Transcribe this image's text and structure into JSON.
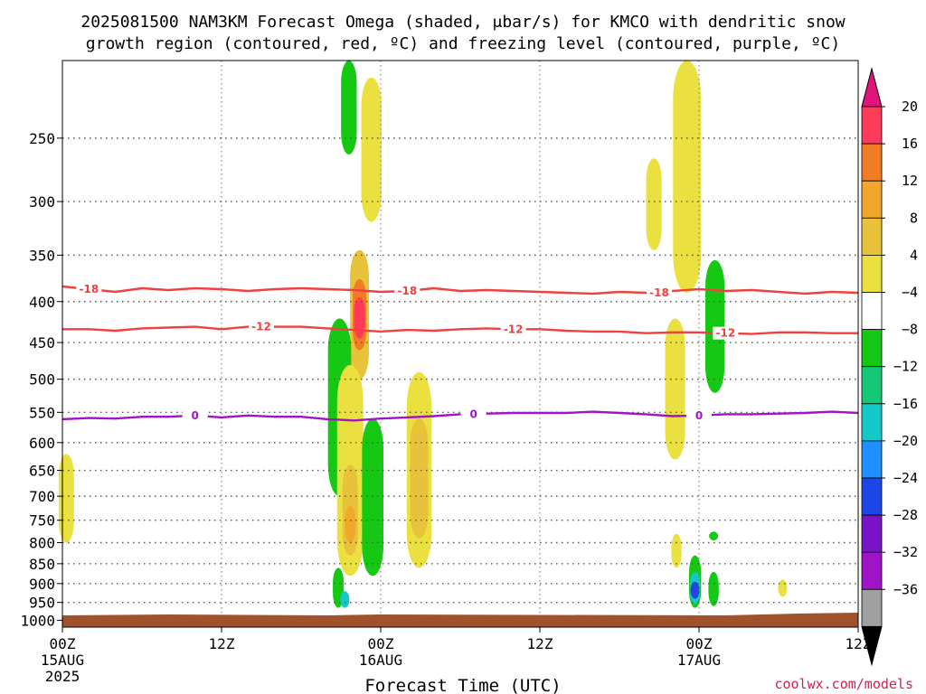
{
  "chart_data": {
    "type": "heatmap",
    "title_line1": "2025081500 NAM3KM Forecast Omega (shaded, μbar/s) for KMCO with dendritic snow",
    "title_line2": "growth region (contoured, red, ºC) and freezing level (contoured, purple, ºC)",
    "xlabel": "Forecast Time (UTC)",
    "x_ticks": [
      {
        "hours": 0,
        "label": "00Z",
        "sub1": "15AUG",
        "sub2": "2025"
      },
      {
        "hours": 12,
        "label": "12Z",
        "sub1": "",
        "sub2": ""
      },
      {
        "hours": 24,
        "label": "00Z",
        "sub1": "16AUG",
        "sub2": ""
      },
      {
        "hours": 36,
        "label": "12Z",
        "sub1": "",
        "sub2": ""
      },
      {
        "hours": 48,
        "label": "00Z",
        "sub1": "17AUG",
        "sub2": ""
      },
      {
        "hours": 60,
        "label": "12Z",
        "sub1": "",
        "sub2": ""
      }
    ],
    "xlim_hours": [
      0,
      60
    ],
    "y_pressure_ticks": [
      250,
      300,
      350,
      400,
      450,
      500,
      550,
      600,
      650,
      700,
      750,
      800,
      850,
      900,
      950,
      1000
    ],
    "ylim_hpa": [
      200,
      1020
    ],
    "y_scale": "log-pressure",
    "grid": true,
    "colorbar": {
      "labels": [
        "20",
        "16",
        "12",
        "8",
        "4",
        "−4",
        "−8",
        "−12",
        "−16",
        "−20",
        "−24",
        "−28",
        "−32",
        "−36"
      ],
      "colors": [
        "#ff3b5c",
        "#f07c24",
        "#f0a72c",
        "#e8c23a",
        "#eae040",
        "#ffffff",
        "#14c814",
        "#14c878",
        "#14c8c8",
        "#1e90ff",
        "#1e46e6",
        "#7a14c8",
        "#a014c8",
        "#a0a0a0"
      ],
      "top_arrow_color": "#e0147a",
      "bottom_arrow_color": "#000000"
    },
    "contours": [
      {
        "name": "-18",
        "color": "#f04040",
        "label": "-18",
        "points": [
          [
            0,
            383
          ],
          [
            2,
            386
          ],
          [
            4,
            389
          ],
          [
            6,
            385
          ],
          [
            8,
            387
          ],
          [
            10,
            385
          ],
          [
            12,
            386
          ],
          [
            14,
            388
          ],
          [
            16,
            386
          ],
          [
            18,
            385
          ],
          [
            20,
            386
          ],
          [
            22,
            387
          ],
          [
            24,
            389
          ],
          [
            26,
            388
          ],
          [
            28,
            385
          ],
          [
            30,
            388
          ],
          [
            32,
            387
          ],
          [
            34,
            388
          ],
          [
            36,
            389
          ],
          [
            38,
            390
          ],
          [
            40,
            391
          ],
          [
            42,
            389
          ],
          [
            44,
            390
          ],
          [
            46,
            388
          ],
          [
            48,
            386
          ],
          [
            50,
            388
          ],
          [
            52,
            387
          ],
          [
            54,
            389
          ],
          [
            56,
            391
          ],
          [
            58,
            389
          ],
          [
            60,
            390
          ]
        ],
        "label_hours": [
          2,
          26,
          45
        ]
      },
      {
        "name": "-12",
        "color": "#f04040",
        "label": "-12",
        "points": [
          [
            0,
            433
          ],
          [
            2,
            433
          ],
          [
            4,
            435
          ],
          [
            6,
            432
          ],
          [
            8,
            431
          ],
          [
            10,
            430
          ],
          [
            12,
            433
          ],
          [
            14,
            430
          ],
          [
            16,
            430
          ],
          [
            18,
            430
          ],
          [
            20,
            432
          ],
          [
            22,
            434
          ],
          [
            24,
            436
          ],
          [
            26,
            434
          ],
          [
            28,
            435
          ],
          [
            30,
            433
          ],
          [
            32,
            432
          ],
          [
            34,
            433
          ],
          [
            36,
            433
          ],
          [
            38,
            435
          ],
          [
            40,
            436
          ],
          [
            42,
            436
          ],
          [
            44,
            438
          ],
          [
            46,
            437
          ],
          [
            48,
            437
          ],
          [
            50,
            438
          ],
          [
            52,
            439
          ],
          [
            54,
            437
          ],
          [
            56,
            437
          ],
          [
            58,
            438
          ],
          [
            60,
            438
          ]
        ],
        "label_hours": [
          15,
          34,
          50
        ]
      },
      {
        "name": "0",
        "color": "#a014c8",
        "label": "0",
        "points": [
          [
            0,
            561
          ],
          [
            2,
            559
          ],
          [
            4,
            560
          ],
          [
            6,
            557
          ],
          [
            8,
            557
          ],
          [
            10,
            555
          ],
          [
            12,
            558
          ],
          [
            14,
            555
          ],
          [
            16,
            557
          ],
          [
            18,
            557
          ],
          [
            20,
            561
          ],
          [
            22,
            563
          ],
          [
            24,
            560
          ],
          [
            26,
            558
          ],
          [
            28,
            556
          ],
          [
            30,
            553
          ],
          [
            32,
            552
          ],
          [
            34,
            551
          ],
          [
            36,
            551
          ],
          [
            38,
            551
          ],
          [
            40,
            549
          ],
          [
            42,
            551
          ],
          [
            44,
            553
          ],
          [
            46,
            556
          ],
          [
            48,
            555
          ],
          [
            50,
            553
          ],
          [
            52,
            553
          ],
          [
            54,
            552
          ],
          [
            56,
            551
          ],
          [
            58,
            549
          ],
          [
            60,
            551
          ]
        ],
        "label_hours": [
          10,
          31,
          48
        ]
      }
    ],
    "omega_cells": [
      {
        "t": 21.6,
        "p_top": 200,
        "p_bot": 262,
        "level": -4
      },
      {
        "t": 23.3,
        "p_top": 210,
        "p_bot": 318,
        "level": 4
      },
      {
        "t": 0.3,
        "p_top": 620,
        "p_bot": 800,
        "level": 4
      },
      {
        "t": 22.4,
        "p_top": 345,
        "p_bot": 500,
        "level": 8
      },
      {
        "t": 22.4,
        "p_top": 375,
        "p_bot": 460,
        "level": 16
      },
      {
        "t": 22.4,
        "p_top": 395,
        "p_bot": 445,
        "level": 20
      },
      {
        "t": 20.9,
        "p_top": 420,
        "p_bot": 700,
        "level": -4
      },
      {
        "t": 21.7,
        "p_top": 480,
        "p_bot": 880,
        "level": 4
      },
      {
        "t": 21.7,
        "p_top": 640,
        "p_bot": 830,
        "level": 8
      },
      {
        "t": 21.7,
        "p_top": 720,
        "p_bot": 800,
        "level": 12
      },
      {
        "t": 23.4,
        "p_top": 560,
        "p_bot": 880,
        "level": -4
      },
      {
        "t": 26.9,
        "p_top": 490,
        "p_bot": 860,
        "level": 4
      },
      {
        "t": 26.9,
        "p_top": 560,
        "p_bot": 790,
        "level": 8
      },
      {
        "t": 20.8,
        "p_top": 860,
        "p_bot": 965,
        "level": -4
      },
      {
        "t": 21.3,
        "p_top": 920,
        "p_bot": 965,
        "level": -12
      },
      {
        "t": 44.6,
        "p_top": 265,
        "p_bot": 345,
        "level": 4
      },
      {
        "t": 47.1,
        "p_top": 200,
        "p_bot": 390,
        "level": 4
      },
      {
        "t": 46.2,
        "p_top": 420,
        "p_bot": 630,
        "level": 4
      },
      {
        "t": 49.2,
        "p_top": 355,
        "p_bot": 520,
        "level": -4
      },
      {
        "t": 46.3,
        "p_top": 780,
        "p_bot": 860,
        "level": 4
      },
      {
        "t": 47.7,
        "p_top": 830,
        "p_bot": 965,
        "level": -4
      },
      {
        "t": 47.7,
        "p_top": 870,
        "p_bot": 955,
        "level": -12
      },
      {
        "t": 47.7,
        "p_top": 895,
        "p_bot": 940,
        "level": -20
      },
      {
        "t": 49.1,
        "p_top": 870,
        "p_bot": 960,
        "level": -4
      },
      {
        "t": 49.1,
        "p_top": 775,
        "p_bot": 795,
        "level": -4
      },
      {
        "t": 54.3,
        "p_top": 890,
        "p_bot": 935,
        "level": 4
      }
    ],
    "terrain_color": "#a0522d",
    "credit": "coolwx.com/models"
  }
}
